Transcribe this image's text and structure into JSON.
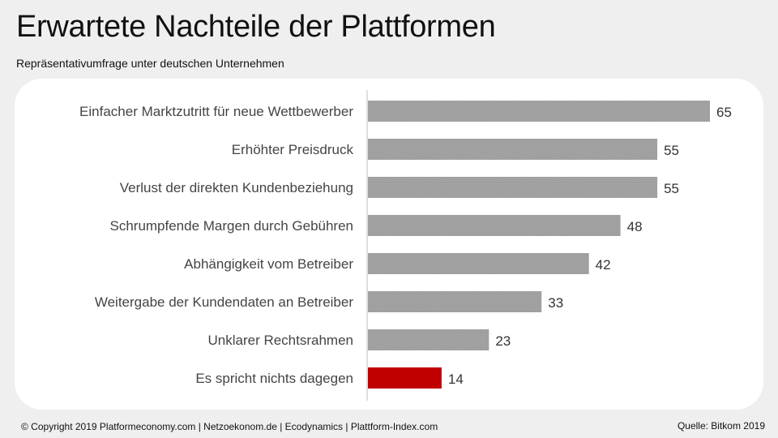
{
  "header": {
    "title": "Erwartete Nachteile der Plattformen",
    "subtitle": "Repräsentativumfrage unter deutschen Unternehmen"
  },
  "footer": {
    "copyright": "© Copyright 2019 Platformeconomy.com | Netzoekonom.de | Ecodynamics | Plattform-Index.com",
    "source": "Quelle: Bitkom 2019"
  },
  "colors": {
    "bar": "#a6a6a6",
    "highlight": "#c00000",
    "axis": "#bfbfbf"
  },
  "chart_data": {
    "type": "bar",
    "orientation": "horizontal",
    "categories": [
      "Einfacher Marktzutritt für neue Wettbewerber",
      "Erhöhter Preisdruck",
      "Verlust der direkten Kundenbeziehung",
      "Schrumpfende Margen durch Gebühren",
      "Abhängigkeit vom Betreiber",
      "Weitergabe der Kundendaten an Betreiber",
      "Unklarer Rechtsrahmen",
      "Es spricht nichts dagegen"
    ],
    "values": [
      65,
      55,
      55,
      48,
      42,
      33,
      23,
      14
    ],
    "highlight_index": 7,
    "xlim": [
      0,
      65
    ],
    "grid": false,
    "legend": "none"
  }
}
